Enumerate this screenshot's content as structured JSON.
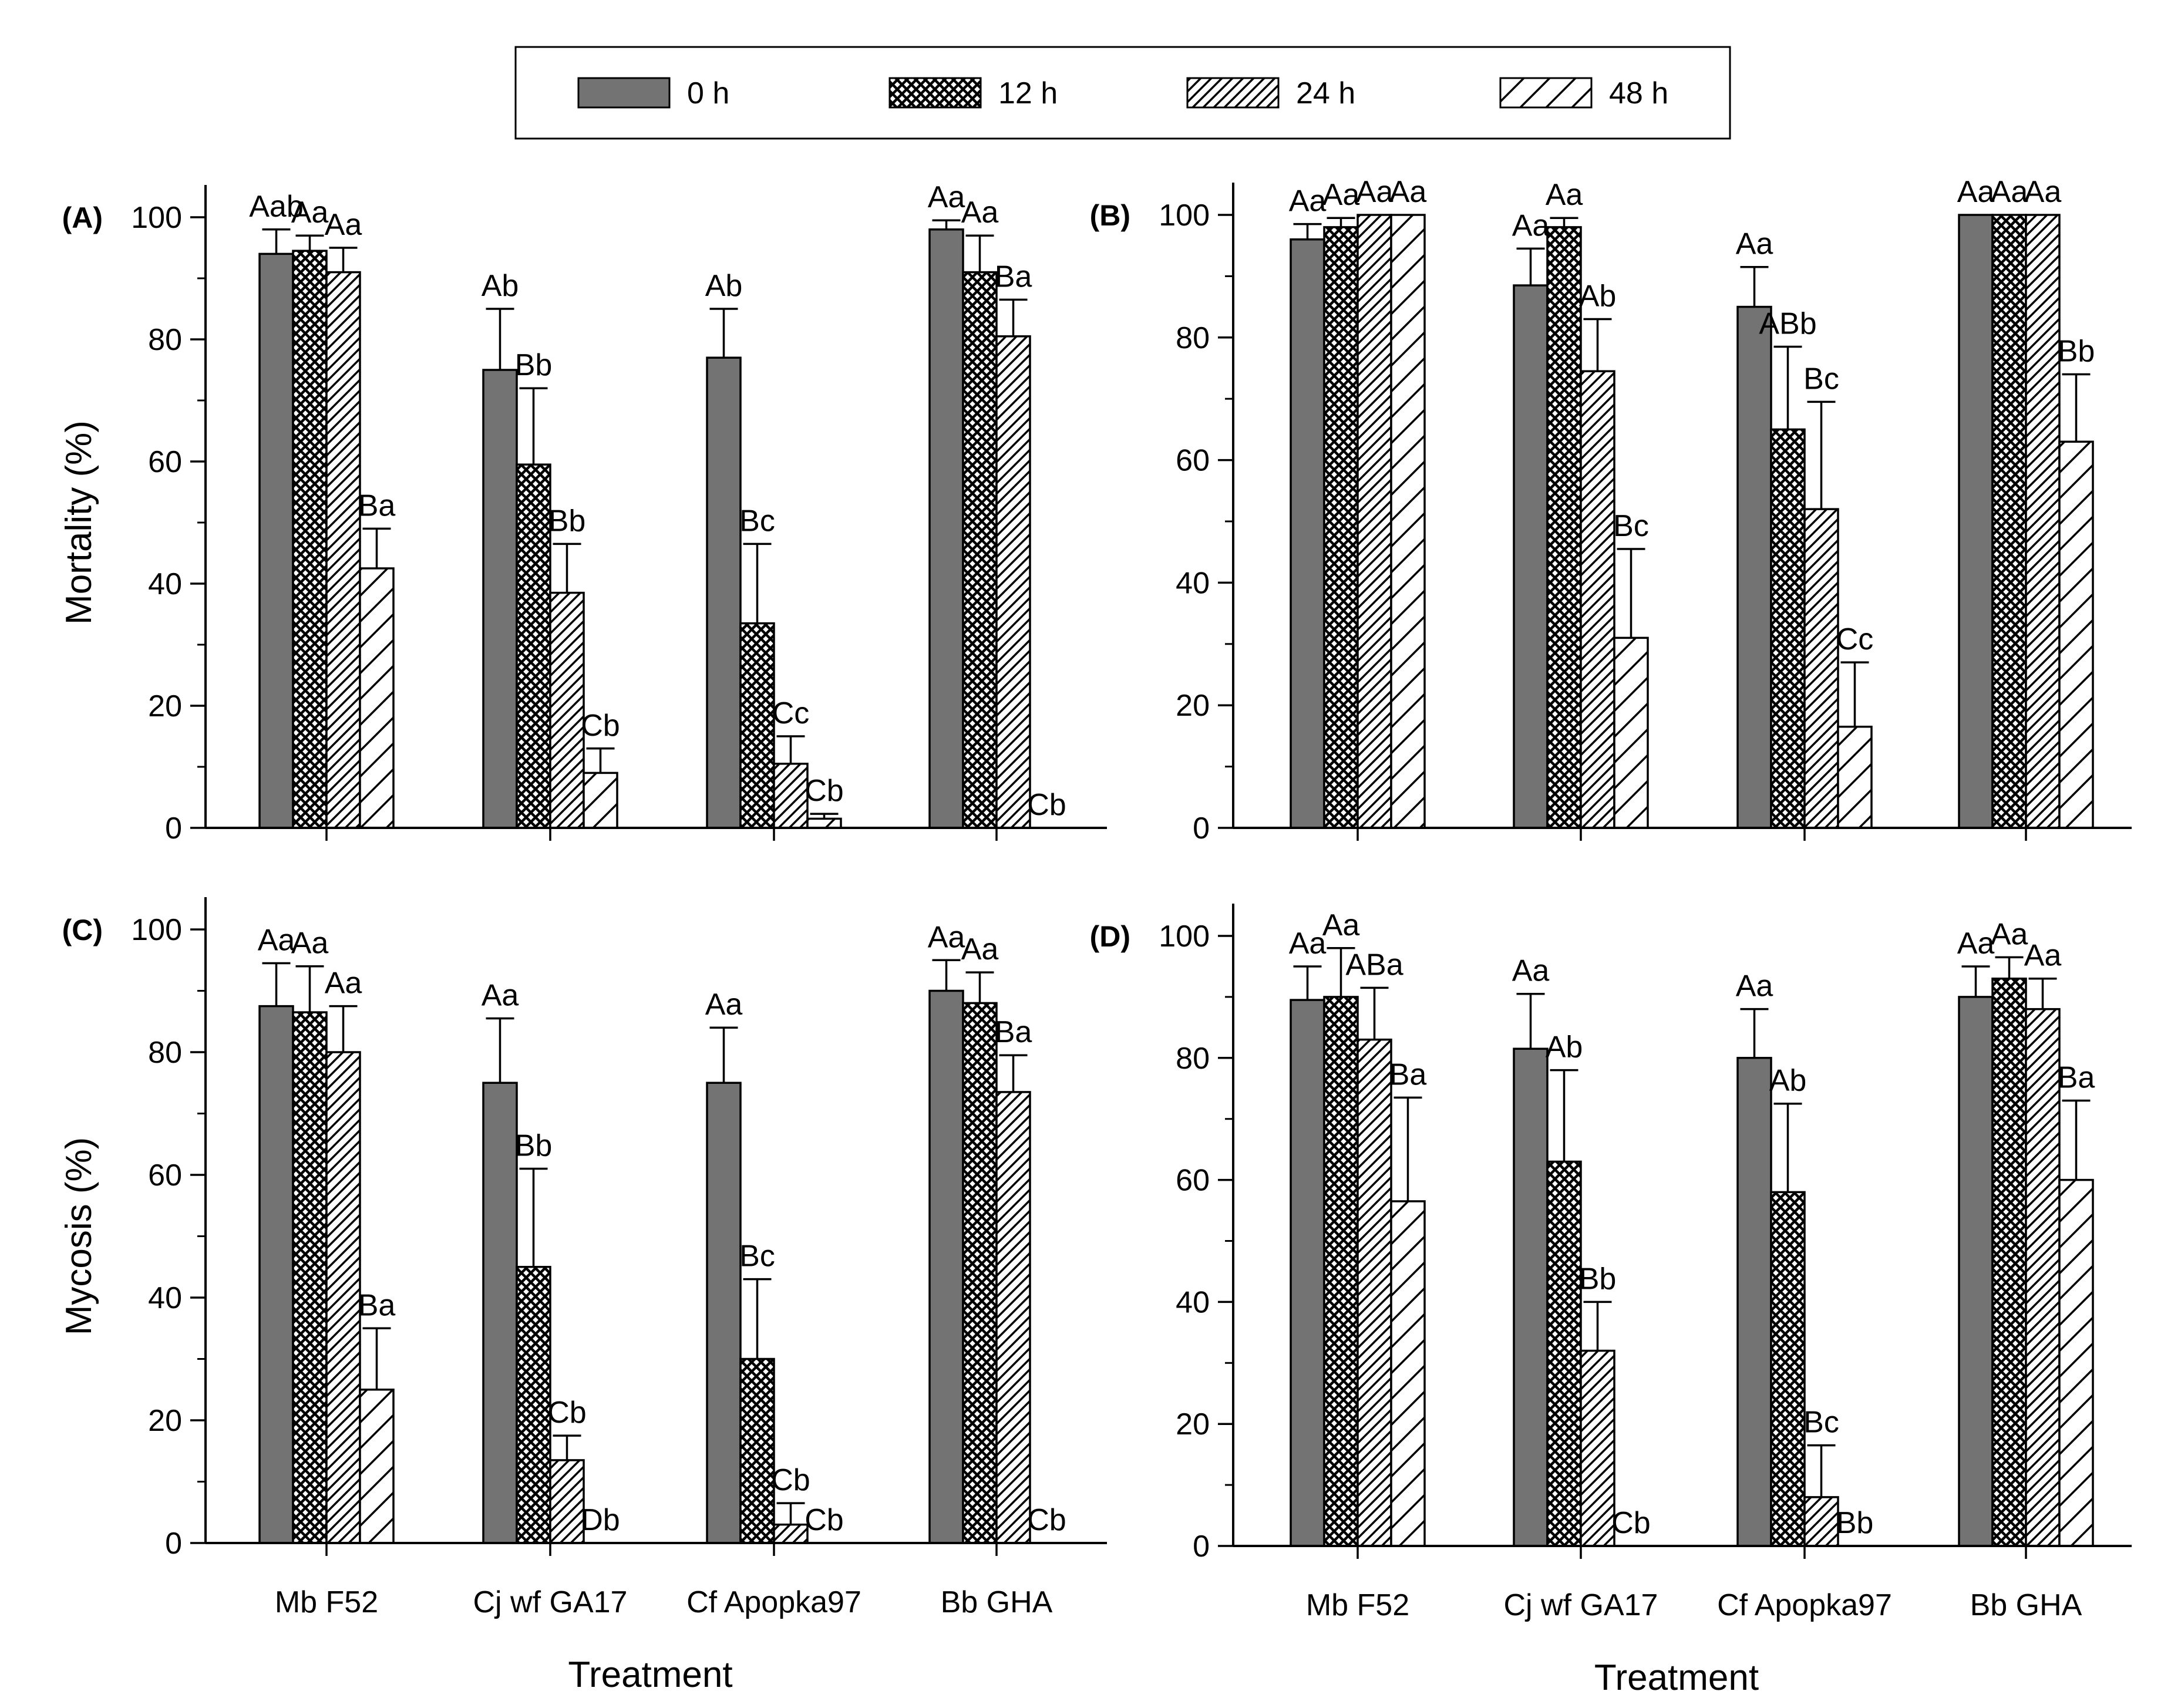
{
  "legend": {
    "series": [
      {
        "key": "0h",
        "label": "0 h",
        "fill": "gray"
      },
      {
        "key": "12h",
        "label": "12 h",
        "fill": "crosshatch"
      },
      {
        "key": "24h",
        "label": "24 h",
        "fill": "dense-hatch"
      },
      {
        "key": "48h",
        "label": "48 h",
        "fill": "sparse-hatch"
      }
    ],
    "position": "top-center"
  },
  "colors": {
    "bar_gray": "#737373",
    "ink": "#000000",
    "background": "#ffffff"
  },
  "chart_data": [
    {
      "id": "A",
      "panel_label": "(A)",
      "type": "bar",
      "ylabel": "Mortality (%)",
      "xlabel": "",
      "ylim": [
        0,
        100
      ],
      "yticks": [
        "0",
        "20",
        "40",
        "60",
        "80",
        "100"
      ],
      "categories": [
        "Mb F52",
        "Cj wf GA17",
        "Cf Apopka97",
        "Bb GHA"
      ],
      "show_category_labels": false,
      "series": [
        {
          "name": "0 h",
          "values": [
            94,
            75,
            77,
            98
          ],
          "errors": [
            4,
            10,
            8,
            1.5
          ]
        },
        {
          "name": "12 h",
          "values": [
            94.5,
            59.5,
            33.5,
            91
          ],
          "errors": [
            2.5,
            12.5,
            13,
            6
          ]
        },
        {
          "name": "24 h",
          "values": [
            91,
            38.5,
            10.5,
            80.5
          ],
          "errors": [
            4,
            8,
            4.5,
            6
          ]
        },
        {
          "name": "48 h",
          "values": [
            42.5,
            9,
            1.5,
            0
          ],
          "errors": [
            6.5,
            4,
            0.8,
            0
          ]
        }
      ],
      "significance": [
        [
          "Aab",
          "Aa",
          "Aa",
          "Ba"
        ],
        [
          "Ab",
          "Bb",
          "Bb",
          "Cb"
        ],
        [
          "Ab",
          "Bc",
          "Cc",
          "Cb"
        ],
        [
          "Aa",
          "Aa",
          "Ba",
          "Cb"
        ]
      ]
    },
    {
      "id": "B",
      "panel_label": "(B)",
      "type": "bar",
      "ylabel": "",
      "xlabel": "",
      "ylim": [
        0,
        100
      ],
      "yticks": [
        "0",
        "20",
        "40",
        "60",
        "80",
        "100"
      ],
      "categories": [
        "Mb F52",
        "Cj wf GA17",
        "Cf Apopka97",
        "Bb GHA"
      ],
      "show_category_labels": false,
      "series": [
        {
          "name": "0 h",
          "values": [
            96,
            88.5,
            85,
            100
          ],
          "errors": [
            2.5,
            6,
            6.5,
            0
          ]
        },
        {
          "name": "12 h",
          "values": [
            98,
            98,
            65,
            100
          ],
          "errors": [
            1.5,
            1.5,
            13.5,
            0
          ]
        },
        {
          "name": "24 h",
          "values": [
            100,
            74.5,
            52,
            100
          ],
          "errors": [
            0,
            8.5,
            17.5,
            0
          ]
        },
        {
          "name": "48 h",
          "values": [
            100,
            31,
            16.5,
            63
          ],
          "errors": [
            0,
            14.5,
            10.5,
            11
          ]
        }
      ],
      "significance": [
        [
          "Aa",
          "Aa",
          "Aa",
          "Aa"
        ],
        [
          "Aa",
          "Aa",
          "Ab",
          "Bc"
        ],
        [
          "Aa",
          "ABb",
          "Bc",
          "Cc"
        ],
        [
          "Aa",
          "Aa",
          "Aa",
          "Bb"
        ]
      ]
    },
    {
      "id": "C",
      "panel_label": "(C)",
      "type": "bar",
      "ylabel": "Mycosis (%)",
      "xlabel": "Treatment",
      "ylim": [
        0,
        100
      ],
      "yticks": [
        "0",
        "20",
        "40",
        "60",
        "80",
        "100"
      ],
      "categories": [
        "Mb F52",
        "Cj wf GA17",
        "Cf Apopka97",
        "Bb GHA"
      ],
      "show_category_labels": true,
      "series": [
        {
          "name": "0 h",
          "values": [
            87.5,
            75,
            75,
            90
          ],
          "errors": [
            7,
            10.5,
            9,
            5
          ]
        },
        {
          "name": "12 h",
          "values": [
            86.5,
            45,
            30,
            88
          ],
          "errors": [
            7.5,
            16,
            13,
            5
          ]
        },
        {
          "name": "24 h",
          "values": [
            80,
            13.5,
            3,
            73.5
          ],
          "errors": [
            7.5,
            4,
            3.5,
            6
          ]
        },
        {
          "name": "48 h",
          "values": [
            25,
            0,
            0,
            0
          ],
          "errors": [
            10,
            0,
            0,
            0
          ]
        }
      ],
      "significance": [
        [
          "Aa",
          "Aa",
          "Aa",
          "Ba"
        ],
        [
          "Aa",
          "Bb",
          "Cb",
          "Db"
        ],
        [
          "Aa",
          "Bc",
          "Cb",
          "Cb"
        ],
        [
          "Aa",
          "Aa",
          "Ba",
          "Cb"
        ]
      ]
    },
    {
      "id": "D",
      "panel_label": "(D)",
      "type": "bar",
      "ylabel": "",
      "xlabel": "Treatment",
      "ylim": [
        0,
        100
      ],
      "yticks": [
        "0",
        "20",
        "40",
        "60",
        "80",
        "100"
      ],
      "categories": [
        "Mb F52",
        "Cj wf GA17",
        "Cf Apopka97",
        "Bb GHA"
      ],
      "show_category_labels": true,
      "series": [
        {
          "name": "0 h",
          "values": [
            89.5,
            81.5,
            80,
            90
          ],
          "errors": [
            5.5,
            9,
            8,
            5
          ]
        },
        {
          "name": "12 h",
          "values": [
            90,
            63,
            58,
            93
          ],
          "errors": [
            8,
            15,
            14.5,
            3.5
          ]
        },
        {
          "name": "24 h",
          "values": [
            83,
            32,
            8,
            88
          ],
          "errors": [
            8.5,
            8,
            8.5,
            5
          ]
        },
        {
          "name": "48 h",
          "values": [
            56.5,
            0,
            0,
            60
          ],
          "errors": [
            17,
            0,
            0,
            13
          ]
        }
      ],
      "significance": [
        [
          "Aa",
          "Aa",
          "ABa",
          "Ba"
        ],
        [
          "Aa",
          "Ab",
          "Bb",
          "Cb"
        ],
        [
          "Aa",
          "Ab",
          "Bc",
          "Bb"
        ],
        [
          "Aa",
          "Aa",
          "Aa",
          "Ba"
        ]
      ]
    }
  ]
}
